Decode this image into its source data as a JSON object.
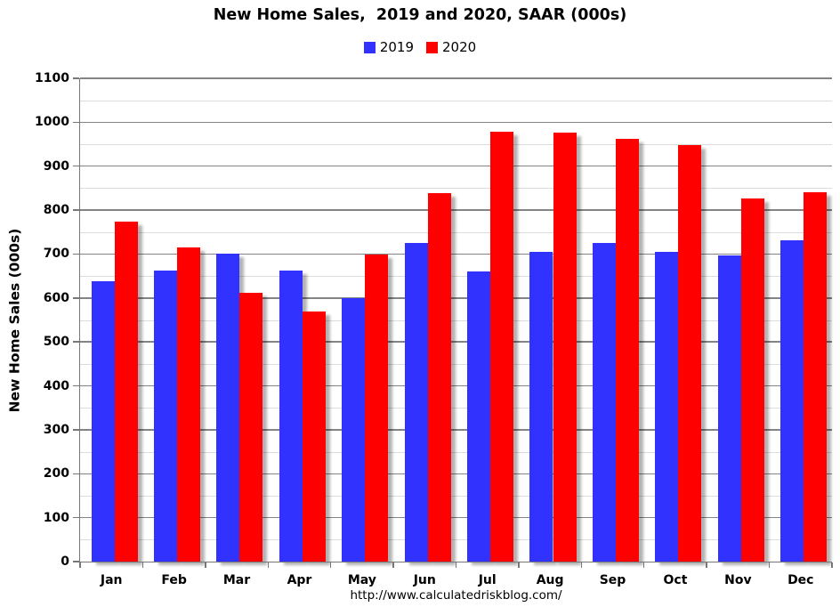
{
  "page": {
    "title": "New Home Sales,  2019 and 2020, SAAR (000s)",
    "footer_url": "http://www.calculatedriskblog.com/"
  },
  "chart_data": {
    "type": "bar",
    "title": "New Home Sales,  2019 and 2020, SAAR (000s)",
    "categories": [
      "Jan",
      "Feb",
      "Mar",
      "Apr",
      "May",
      "Jun",
      "Jul",
      "Aug",
      "Sep",
      "Oct",
      "Nov",
      "Dec"
    ],
    "series": [
      {
        "name": "2019",
        "color": "#3232ff",
        "values": [
          638,
          663,
          700,
          663,
          599,
          726,
          660,
          706,
          726,
          706,
          696,
          731
        ]
      },
      {
        "name": "2020",
        "color": "#ff0000",
        "values": [
          773,
          716,
          611,
          570,
          698,
          839,
          978,
          976,
          963,
          949,
          827,
          841
        ]
      }
    ],
    "xlabel": "",
    "ylabel": "New Home Sales (000s)",
    "ylim": [
      0,
      1100
    ],
    "ytick_interval": 100,
    "yminor_interval": 50,
    "grid": true,
    "legend_position": "top-center",
    "colors": {
      "grid_major": "#848484",
      "grid_minor": "#dcdcdc",
      "axis": "#777777",
      "text": "#000000"
    }
  }
}
